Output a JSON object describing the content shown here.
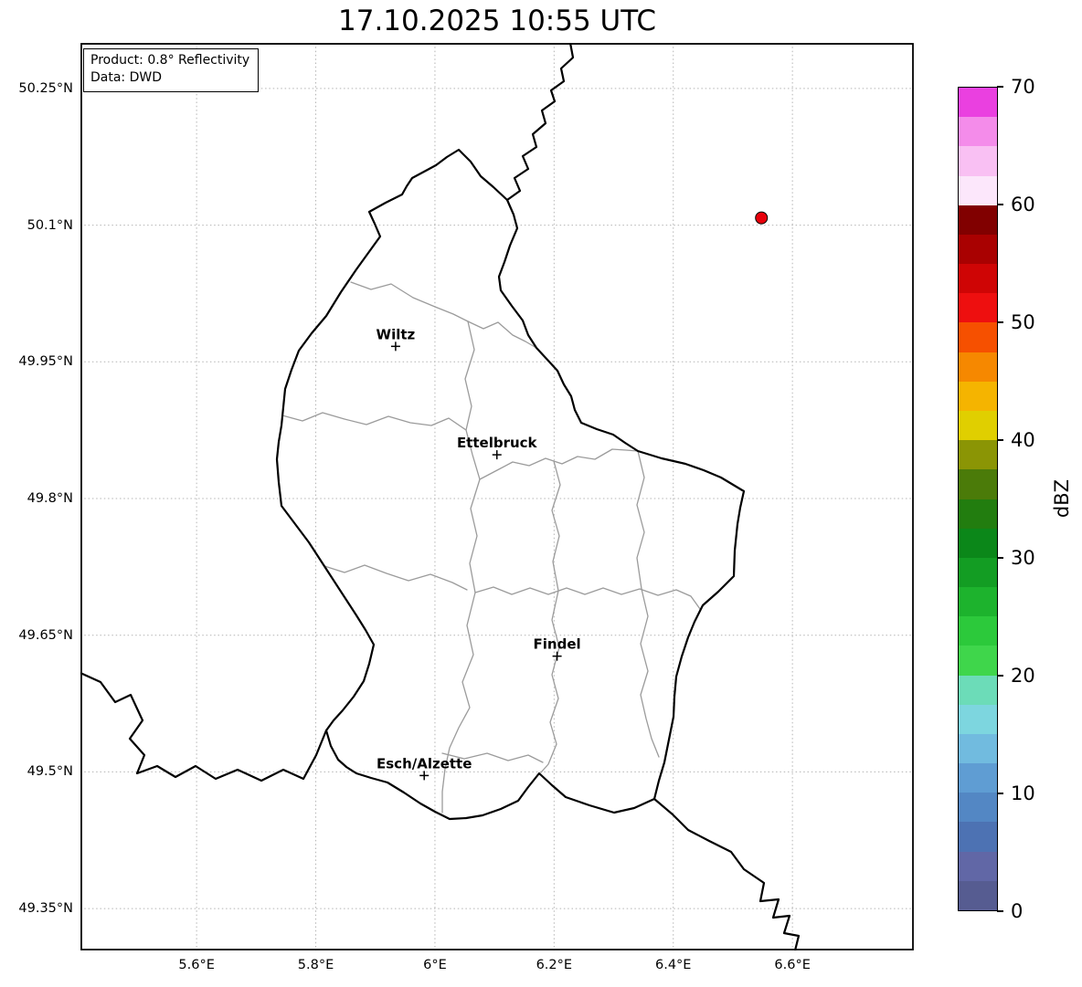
{
  "title": "17.10.2025 10:55 UTC",
  "legend": {
    "product": "Product: 0.8° Reflectivity",
    "data_source": "Data: DWD"
  },
  "axes": {
    "x_ticks": [
      {
        "label": "5.6°E",
        "lon": 5.6
      },
      {
        "label": "5.8°E",
        "lon": 5.8
      },
      {
        "label": "6°E",
        "lon": 6.0
      },
      {
        "label": "6.2°E",
        "lon": 6.2
      },
      {
        "label": "6.4°E",
        "lon": 6.4
      },
      {
        "label": "6.6°E",
        "lon": 6.6
      }
    ],
    "y_ticks": [
      {
        "label": "50.25°N",
        "lat": 50.25
      },
      {
        "label": "50.1°N",
        "lat": 50.1
      },
      {
        "label": "49.95°N",
        "lat": 49.95
      },
      {
        "label": "49.8°N",
        "lat": 49.8
      },
      {
        "label": "49.65°N",
        "lat": 49.65
      },
      {
        "label": "49.5°N",
        "lat": 49.5
      },
      {
        "label": "49.35°N",
        "lat": 49.35
      }
    ]
  },
  "cities": [
    {
      "name": "Wiltz",
      "lon": 5.934,
      "lat": 49.967
    },
    {
      "name": "Ettelbruck",
      "lon": 6.104,
      "lat": 49.848
    },
    {
      "name": "Findel",
      "lon": 6.205,
      "lat": 49.627
    },
    {
      "name": "Esch/Alzette",
      "lon": 5.982,
      "lat": 49.496
    }
  ],
  "radar_marker": {
    "lon": 6.548,
    "lat": 50.108,
    "color": "#e8000b"
  },
  "colorbar": {
    "label": "dBZ",
    "min": 0,
    "max": 70,
    "ticks": [
      0,
      10,
      20,
      30,
      40,
      50,
      60,
      70
    ],
    "segments": [
      {
        "from": 0,
        "to": 2.5,
        "color": "#565c91"
      },
      {
        "from": 2.5,
        "to": 5,
        "color": "#6167a6"
      },
      {
        "from": 5,
        "to": 7.5,
        "color": "#4d72b3"
      },
      {
        "from": 7.5,
        "to": 10,
        "color": "#5387c4"
      },
      {
        "from": 10,
        "to": 12.5,
        "color": "#5f9dd3"
      },
      {
        "from": 12.5,
        "to": 15,
        "color": "#71bbdf"
      },
      {
        "from": 15,
        "to": 17.5,
        "color": "#7dd6df"
      },
      {
        "from": 17.5,
        "to": 20,
        "color": "#6cdcb8"
      },
      {
        "from": 20,
        "to": 22.5,
        "color": "#3fd64b"
      },
      {
        "from": 22.5,
        "to": 25,
        "color": "#2cc93b"
      },
      {
        "from": 25,
        "to": 27.5,
        "color": "#1db32d"
      },
      {
        "from": 27.5,
        "to": 30,
        "color": "#139d23"
      },
      {
        "from": 30,
        "to": 32.5,
        "color": "#0b8719"
      },
      {
        "from": 32.5,
        "to": 35,
        "color": "#227d0f"
      },
      {
        "from": 35,
        "to": 37.5,
        "color": "#4b7b09"
      },
      {
        "from": 37.5,
        "to": 40,
        "color": "#8b9505"
      },
      {
        "from": 40,
        "to": 42.5,
        "color": "#e0cf00"
      },
      {
        "from": 42.5,
        "to": 45,
        "color": "#f5b400"
      },
      {
        "from": 45,
        "to": 47.5,
        "color": "#f68800"
      },
      {
        "from": 47.5,
        "to": 50,
        "color": "#f65000"
      },
      {
        "from": 50,
        "to": 52.5,
        "color": "#ee0f0f"
      },
      {
        "from": 52.5,
        "to": 55,
        "color": "#cf0505"
      },
      {
        "from": 55,
        "to": 57.5,
        "color": "#a90101"
      },
      {
        "from": 57.5,
        "to": 60,
        "color": "#810000"
      },
      {
        "from": 60,
        "to": 62.5,
        "color": "#fce7fb"
      },
      {
        "from": 62.5,
        "to": 65,
        "color": "#f9c0f3"
      },
      {
        "from": 65,
        "to": 67.5,
        "color": "#f48cea"
      },
      {
        "from": 67.5,
        "to": 70,
        "color": "#ea40e0"
      }
    ]
  },
  "style": {
    "grid_color": "#b4b4b4",
    "country_border_color": "#000000",
    "district_border_color": "#9b9b9b"
  }
}
